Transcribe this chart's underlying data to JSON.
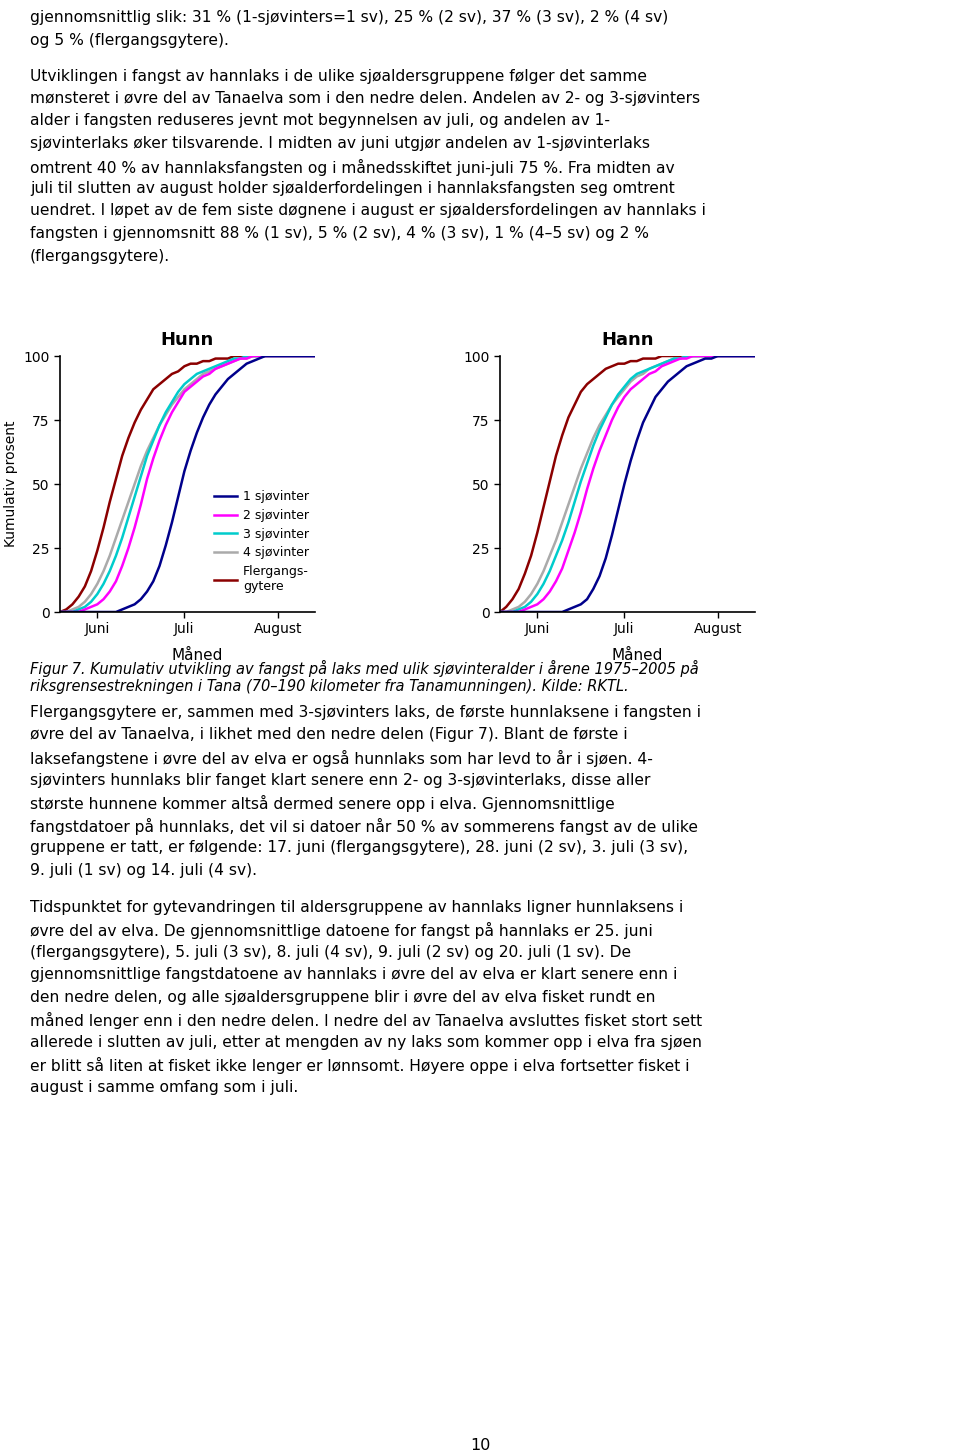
{
  "page_text_top": [
    "gjennomsnittlig slik: 31 % (1-sjøvinters=1 sv), 25 % (2 sv), 37 % (3 sv), 2 % (4 sv)",
    "og 5 % (flergangsgytere).",
    "",
    "Utviklingen i fangst av hannlaks i de ulike sjøaldersgruppene følger det samme",
    "mønsteret i øvre del av Tanaelva som i den nedre delen. Andelen av 2- og 3-sjøvinters",
    "alder i fangsten reduseres jevnt mot begynnelsen av juli, og andelen av 1-",
    "sjøvinterlaks øker tilsvarende. I midten av juni utgjør andelen av 1-sjøvinterlaks",
    "omtrent 40 % av hannlaksfangsten og i månedsskiftet juni-juli 75 %. Fra midten av",
    "juli til slutten av august holder sjøalderfordelingen i hannlaksfangsten seg omtrent",
    "uendret. I løpet av de fem siste døgnene i august er sjøaldersfordelingen av hannlaks i",
    "fangsten i gjennomsnitt 88 % (1 sv), 5 % (2 sv), 4 % (3 sv), 1 % (4–5 sv) og 2 %",
    "(flergangsgytere)."
  ],
  "caption_lines": [
    "Figur 7. Kumulativ utvikling av fangst på laks med ulik sjøvinteralder i årene 1975–2005 på",
    "riksgrensestrekningen i Tana (70–190 kilometer fra Tanamunningen). Kilde: RKTL."
  ],
  "page_text_bottom": [
    "Flergangsgytere er, sammen med 3-sjøvinters laks, de første hunnlaksene i fangsten i",
    "øvre del av Tanaelva, i likhet med den nedre delen (Figur 7). Blant de første i",
    "laksefangstene i øvre del av elva er også hunnlaks som har levd to år i sjøen. 4-",
    "sjøvinters hunnlaks blir fanget klart senere enn 2- og 3-sjøvinterlaks, disse aller",
    "største hunnene kommer altså dermed senere opp i elva. Gjennomsnittlige",
    "fangstdatoer på hunnlaks, det vil si datoer når 50 % av sommerens fangst av de ulike",
    "gruppene er tatt, er følgende: 17. juni (flergangsgytere), 28. juni (2 sv), 3. juli (3 sv),",
    "9. juli (1 sv) og 14. juli (4 sv).",
    "",
    "Tidspunktet for gytevandringen til aldersgruppene av hannlaks ligner hunnlaksens i",
    "øvre del av elva. De gjennomsnittlige datoene for fangst på hannlaks er 25. juni",
    "(flergangsgytere), 5. juli (3 sv), 8. juli (4 sv), 9. juli (2 sv) og 20. juli (1 sv). De",
    "gjennomsnittlige fangstdatoene av hannlaks i øvre del av elva er klart senere enn i",
    "den nedre delen, og alle sjøaldersgruppene blir i øvre del av elva fisket rundt en",
    "måned lenger enn i den nedre delen. I nedre del av Tanaelva avsluttes fisket stort sett",
    "allerede i slutten av juli, etter at mengden av ny laks som kommer opp i elva fra sjøen",
    "er blitt så liten at fisket ikke lenger er lønnsomt. Høyere oppe i elva fortsetter fisket i",
    "august i samme omfang som i juli."
  ],
  "page_number": "10",
  "left_title": "Hunn",
  "right_title": "Hann",
  "ylabel": "Kumulativ prosent",
  "xlabel": "Måned",
  "xtick_labels": [
    "Juni",
    "Juli",
    "August"
  ],
  "ytick_labels": [
    0,
    25,
    50,
    75,
    100
  ],
  "legend_labels": [
    "1 sjøvinter",
    "2 sjøvinter",
    "3 sjøvinter",
    "4 sjøvinter",
    "Flergangs-\ngytere"
  ],
  "line_colors": {
    "1sv": "#00008B",
    "2sv": "#FF00FF",
    "3sv": "#00CCCC",
    "4sv": "#AAAAAA",
    "fler": "#8B0000"
  },
  "hunn": {
    "1sv": [
      0,
      0,
      0,
      0,
      0,
      0,
      0,
      0,
      0,
      0,
      1,
      2,
      3,
      5,
      8,
      12,
      18,
      26,
      35,
      45,
      55,
      63,
      70,
      76,
      81,
      85,
      88,
      91,
      93,
      95,
      97,
      98,
      99,
      100,
      100,
      100,
      100,
      100,
      100,
      100,
      100,
      100
    ],
    "2sv": [
      0,
      0,
      0,
      0,
      1,
      2,
      3,
      5,
      8,
      12,
      18,
      25,
      33,
      42,
      52,
      60,
      67,
      73,
      78,
      82,
      86,
      88,
      90,
      92,
      93,
      95,
      96,
      97,
      98,
      99,
      99,
      100,
      100,
      100,
      100,
      100,
      100,
      100,
      100,
      100,
      100,
      100
    ],
    "3sv": [
      0,
      0,
      0,
      1,
      2,
      4,
      7,
      11,
      16,
      22,
      29,
      37,
      45,
      53,
      61,
      67,
      73,
      78,
      82,
      86,
      89,
      91,
      93,
      94,
      95,
      96,
      97,
      98,
      99,
      99,
      100,
      100,
      100,
      100,
      100,
      100,
      100,
      100,
      100,
      100,
      100,
      100
    ],
    "4sv": [
      0,
      0,
      1,
      2,
      4,
      7,
      11,
      16,
      22,
      29,
      36,
      43,
      50,
      57,
      63,
      68,
      73,
      77,
      81,
      84,
      87,
      89,
      91,
      93,
      94,
      95,
      96,
      97,
      98,
      99,
      99,
      100,
      100,
      100,
      100,
      100,
      100,
      100,
      100,
      100,
      100,
      100
    ],
    "fler": [
      0,
      1,
      3,
      6,
      10,
      16,
      24,
      33,
      43,
      52,
      61,
      68,
      74,
      79,
      83,
      87,
      89,
      91,
      93,
      94,
      96,
      97,
      97,
      98,
      98,
      99,
      99,
      99,
      100,
      100,
      100,
      100,
      100,
      100,
      100,
      100,
      100,
      100,
      100,
      100,
      100,
      100
    ]
  },
  "hann": {
    "1sv": [
      0,
      0,
      0,
      0,
      0,
      0,
      0,
      0,
      0,
      0,
      0,
      1,
      2,
      3,
      5,
      9,
      14,
      21,
      30,
      40,
      50,
      59,
      67,
      74,
      79,
      84,
      87,
      90,
      92,
      94,
      96,
      97,
      98,
      99,
      99,
      100,
      100,
      100,
      100,
      100,
      100,
      100
    ],
    "2sv": [
      0,
      0,
      0,
      0,
      1,
      2,
      3,
      5,
      8,
      12,
      17,
      24,
      31,
      39,
      48,
      56,
      63,
      69,
      75,
      80,
      84,
      87,
      89,
      91,
      93,
      94,
      96,
      97,
      98,
      99,
      99,
      100,
      100,
      100,
      100,
      100,
      100,
      100,
      100,
      100,
      100,
      100
    ],
    "3sv": [
      0,
      0,
      0,
      1,
      2,
      4,
      7,
      11,
      16,
      22,
      28,
      35,
      43,
      51,
      58,
      65,
      71,
      76,
      81,
      85,
      88,
      91,
      93,
      94,
      95,
      96,
      97,
      98,
      99,
      99,
      100,
      100,
      100,
      100,
      100,
      100,
      100,
      100,
      100,
      100,
      100,
      100
    ],
    "4sv": [
      0,
      0,
      1,
      2,
      4,
      7,
      11,
      16,
      22,
      28,
      35,
      42,
      49,
      56,
      62,
      68,
      73,
      77,
      81,
      84,
      87,
      90,
      92,
      93,
      95,
      96,
      97,
      98,
      99,
      99,
      100,
      100,
      100,
      100,
      100,
      100,
      100,
      100,
      100,
      100,
      100,
      100
    ],
    "fler": [
      0,
      2,
      5,
      9,
      15,
      22,
      31,
      41,
      51,
      61,
      69,
      76,
      81,
      86,
      89,
      91,
      93,
      95,
      96,
      97,
      97,
      98,
      98,
      99,
      99,
      99,
      100,
      100,
      100,
      100,
      100,
      100,
      100,
      100,
      100,
      100,
      100,
      100,
      100,
      100,
      100,
      100
    ]
  }
}
